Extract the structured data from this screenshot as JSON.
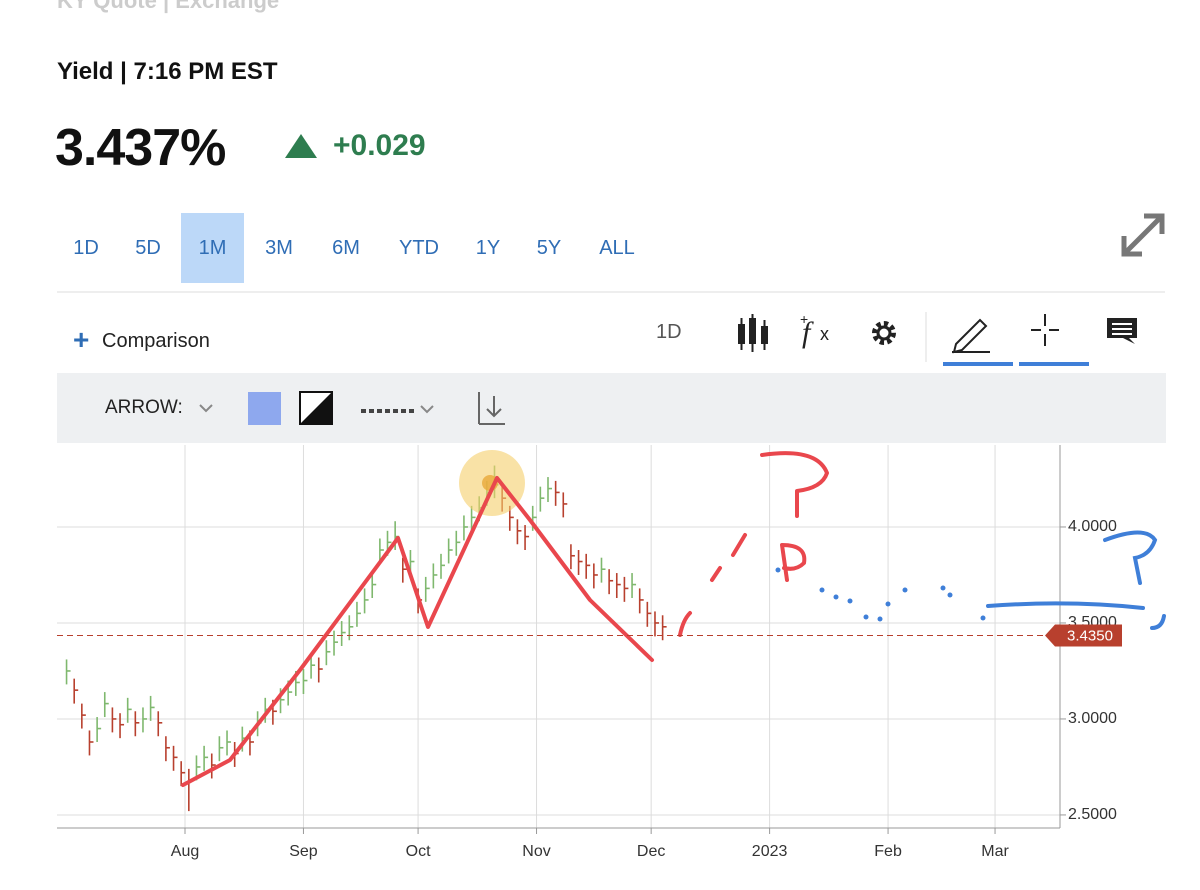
{
  "header": {
    "exchange": "KY Quote | Exchange",
    "yield_label": "Yield | 7:16 PM EST",
    "price": "3.437%",
    "change": "+0.029"
  },
  "range_tabs": [
    "1D",
    "5D",
    "1M",
    "3M",
    "6M",
    "YTD",
    "1Y",
    "5Y",
    "ALL"
  ],
  "active_range": "1M",
  "chart_toolbar": {
    "comparison": "Comparison",
    "interval": "1D"
  },
  "drawing_toolbar": {
    "tool": "ARROW:"
  },
  "chart_data": {
    "type": "ohlc",
    "up_color": "#7fb86e",
    "down_color": "#b8402e",
    "x": [
      -31,
      -29,
      -27,
      -25,
      -23,
      -21,
      -19,
      -17,
      -15,
      -13,
      -11,
      -9,
      -7,
      -5,
      -3,
      -1,
      1,
      3,
      5,
      7,
      9,
      11,
      13,
      15,
      17,
      19,
      21,
      23,
      25,
      27,
      29,
      31,
      33,
      35,
      37,
      39,
      41,
      43,
      45,
      47,
      49,
      51,
      53,
      55,
      57,
      59,
      61,
      63,
      65,
      67,
      69,
      71,
      73,
      75,
      77,
      79,
      81,
      83,
      85,
      87,
      89,
      91,
      93,
      95,
      97,
      99,
      101,
      103,
      105,
      107,
      109,
      111,
      113,
      115,
      117,
      119,
      121,
      123,
      125
    ],
    "high": [
      3.31,
      3.21,
      3.08,
      2.94,
      3.01,
      3.14,
      3.06,
      3.03,
      3.11,
      3.04,
      3.06,
      3.12,
      3.04,
      2.91,
      2.86,
      2.78,
      2.74,
      2.81,
      2.86,
      2.82,
      2.91,
      2.94,
      2.88,
      2.96,
      2.94,
      3.04,
      3.11,
      3.1,
      3.16,
      3.2,
      3.25,
      3.26,
      3.34,
      3.32,
      3.41,
      3.46,
      3.51,
      3.54,
      3.61,
      3.68,
      3.76,
      3.94,
      3.98,
      4.03,
      3.84,
      3.88,
      3.68,
      3.74,
      3.81,
      3.86,
      3.94,
      3.98,
      4.06,
      4.11,
      4.16,
      4.24,
      4.32,
      4.21,
      4.11,
      4.04,
      4.01,
      4.11,
      4.21,
      4.26,
      4.24,
      4.18,
      3.91,
      3.88,
      3.86,
      3.81,
      3.84,
      3.78,
      3.76,
      3.74,
      3.76,
      3.68,
      3.61,
      3.56,
      3.54
    ],
    "low": [
      3.18,
      3.08,
      2.95,
      2.81,
      2.88,
      3.01,
      2.93,
      2.9,
      2.98,
      2.91,
      2.93,
      2.99,
      2.91,
      2.78,
      2.73,
      2.65,
      2.52,
      2.68,
      2.73,
      2.69,
      2.78,
      2.81,
      2.75,
      2.83,
      2.81,
      2.91,
      2.98,
      2.97,
      3.03,
      3.07,
      3.12,
      3.13,
      3.21,
      3.19,
      3.28,
      3.33,
      3.38,
      3.41,
      3.48,
      3.55,
      3.63,
      3.81,
      3.85,
      3.88,
      3.71,
      3.75,
      3.55,
      3.61,
      3.68,
      3.73,
      3.81,
      3.85,
      3.93,
      3.98,
      4.03,
      4.11,
      4.15,
      4.08,
      3.98,
      3.91,
      3.88,
      3.98,
      4.08,
      4.13,
      4.11,
      4.05,
      3.78,
      3.75,
      3.73,
      3.68,
      3.71,
      3.65,
      3.63,
      3.61,
      3.63,
      3.55,
      3.48,
      3.43,
      3.41
    ],
    "close": [
      3.25,
      3.15,
      3.02,
      2.88,
      2.95,
      3.08,
      3.0,
      2.97,
      3.05,
      2.98,
      3.0,
      3.06,
      2.98,
      2.85,
      2.8,
      2.72,
      2.68,
      2.75,
      2.8,
      2.76,
      2.85,
      2.88,
      2.82,
      2.9,
      2.88,
      2.98,
      3.05,
      3.04,
      3.1,
      3.14,
      3.19,
      3.2,
      3.28,
      3.26,
      3.35,
      3.4,
      3.45,
      3.48,
      3.55,
      3.62,
      3.7,
      3.88,
      3.92,
      3.95,
      3.78,
      3.82,
      3.62,
      3.68,
      3.75,
      3.8,
      3.88,
      3.92,
      4.0,
      4.05,
      4.1,
      4.18,
      4.22,
      4.15,
      4.05,
      3.98,
      3.95,
      4.05,
      4.15,
      4.2,
      4.18,
      4.12,
      3.85,
      3.82,
      3.8,
      3.75,
      3.78,
      3.72,
      3.7,
      3.68,
      3.7,
      3.62,
      3.55,
      3.5,
      3.48
    ],
    "xlim": [
      -33.5,
      229
    ],
    "xticks": [
      {
        "value": 0,
        "label": "Aug"
      },
      {
        "value": 31,
        "label": "Sep"
      },
      {
        "value": 61,
        "label": "Oct"
      },
      {
        "value": 92,
        "label": "Nov"
      },
      {
        "value": 122,
        "label": "Dec"
      },
      {
        "value": 153,
        "label": "2023"
      },
      {
        "value": 184,
        "label": "Feb"
      },
      {
        "value": 212,
        "label": "Mar"
      }
    ],
    "ylim": [
      2.432,
      4.427
    ],
    "yticks": [
      {
        "value": 2.5,
        "label": "2.5000"
      },
      {
        "value": 3,
        "label": "3.0000"
      },
      {
        "value": 3.5,
        "label": "3.5000"
      },
      {
        "value": 4,
        "label": "4.0000"
      }
    ],
    "price_line": {
      "value": 3.435,
      "label": "3.4350"
    },
    "grid": true
  }
}
